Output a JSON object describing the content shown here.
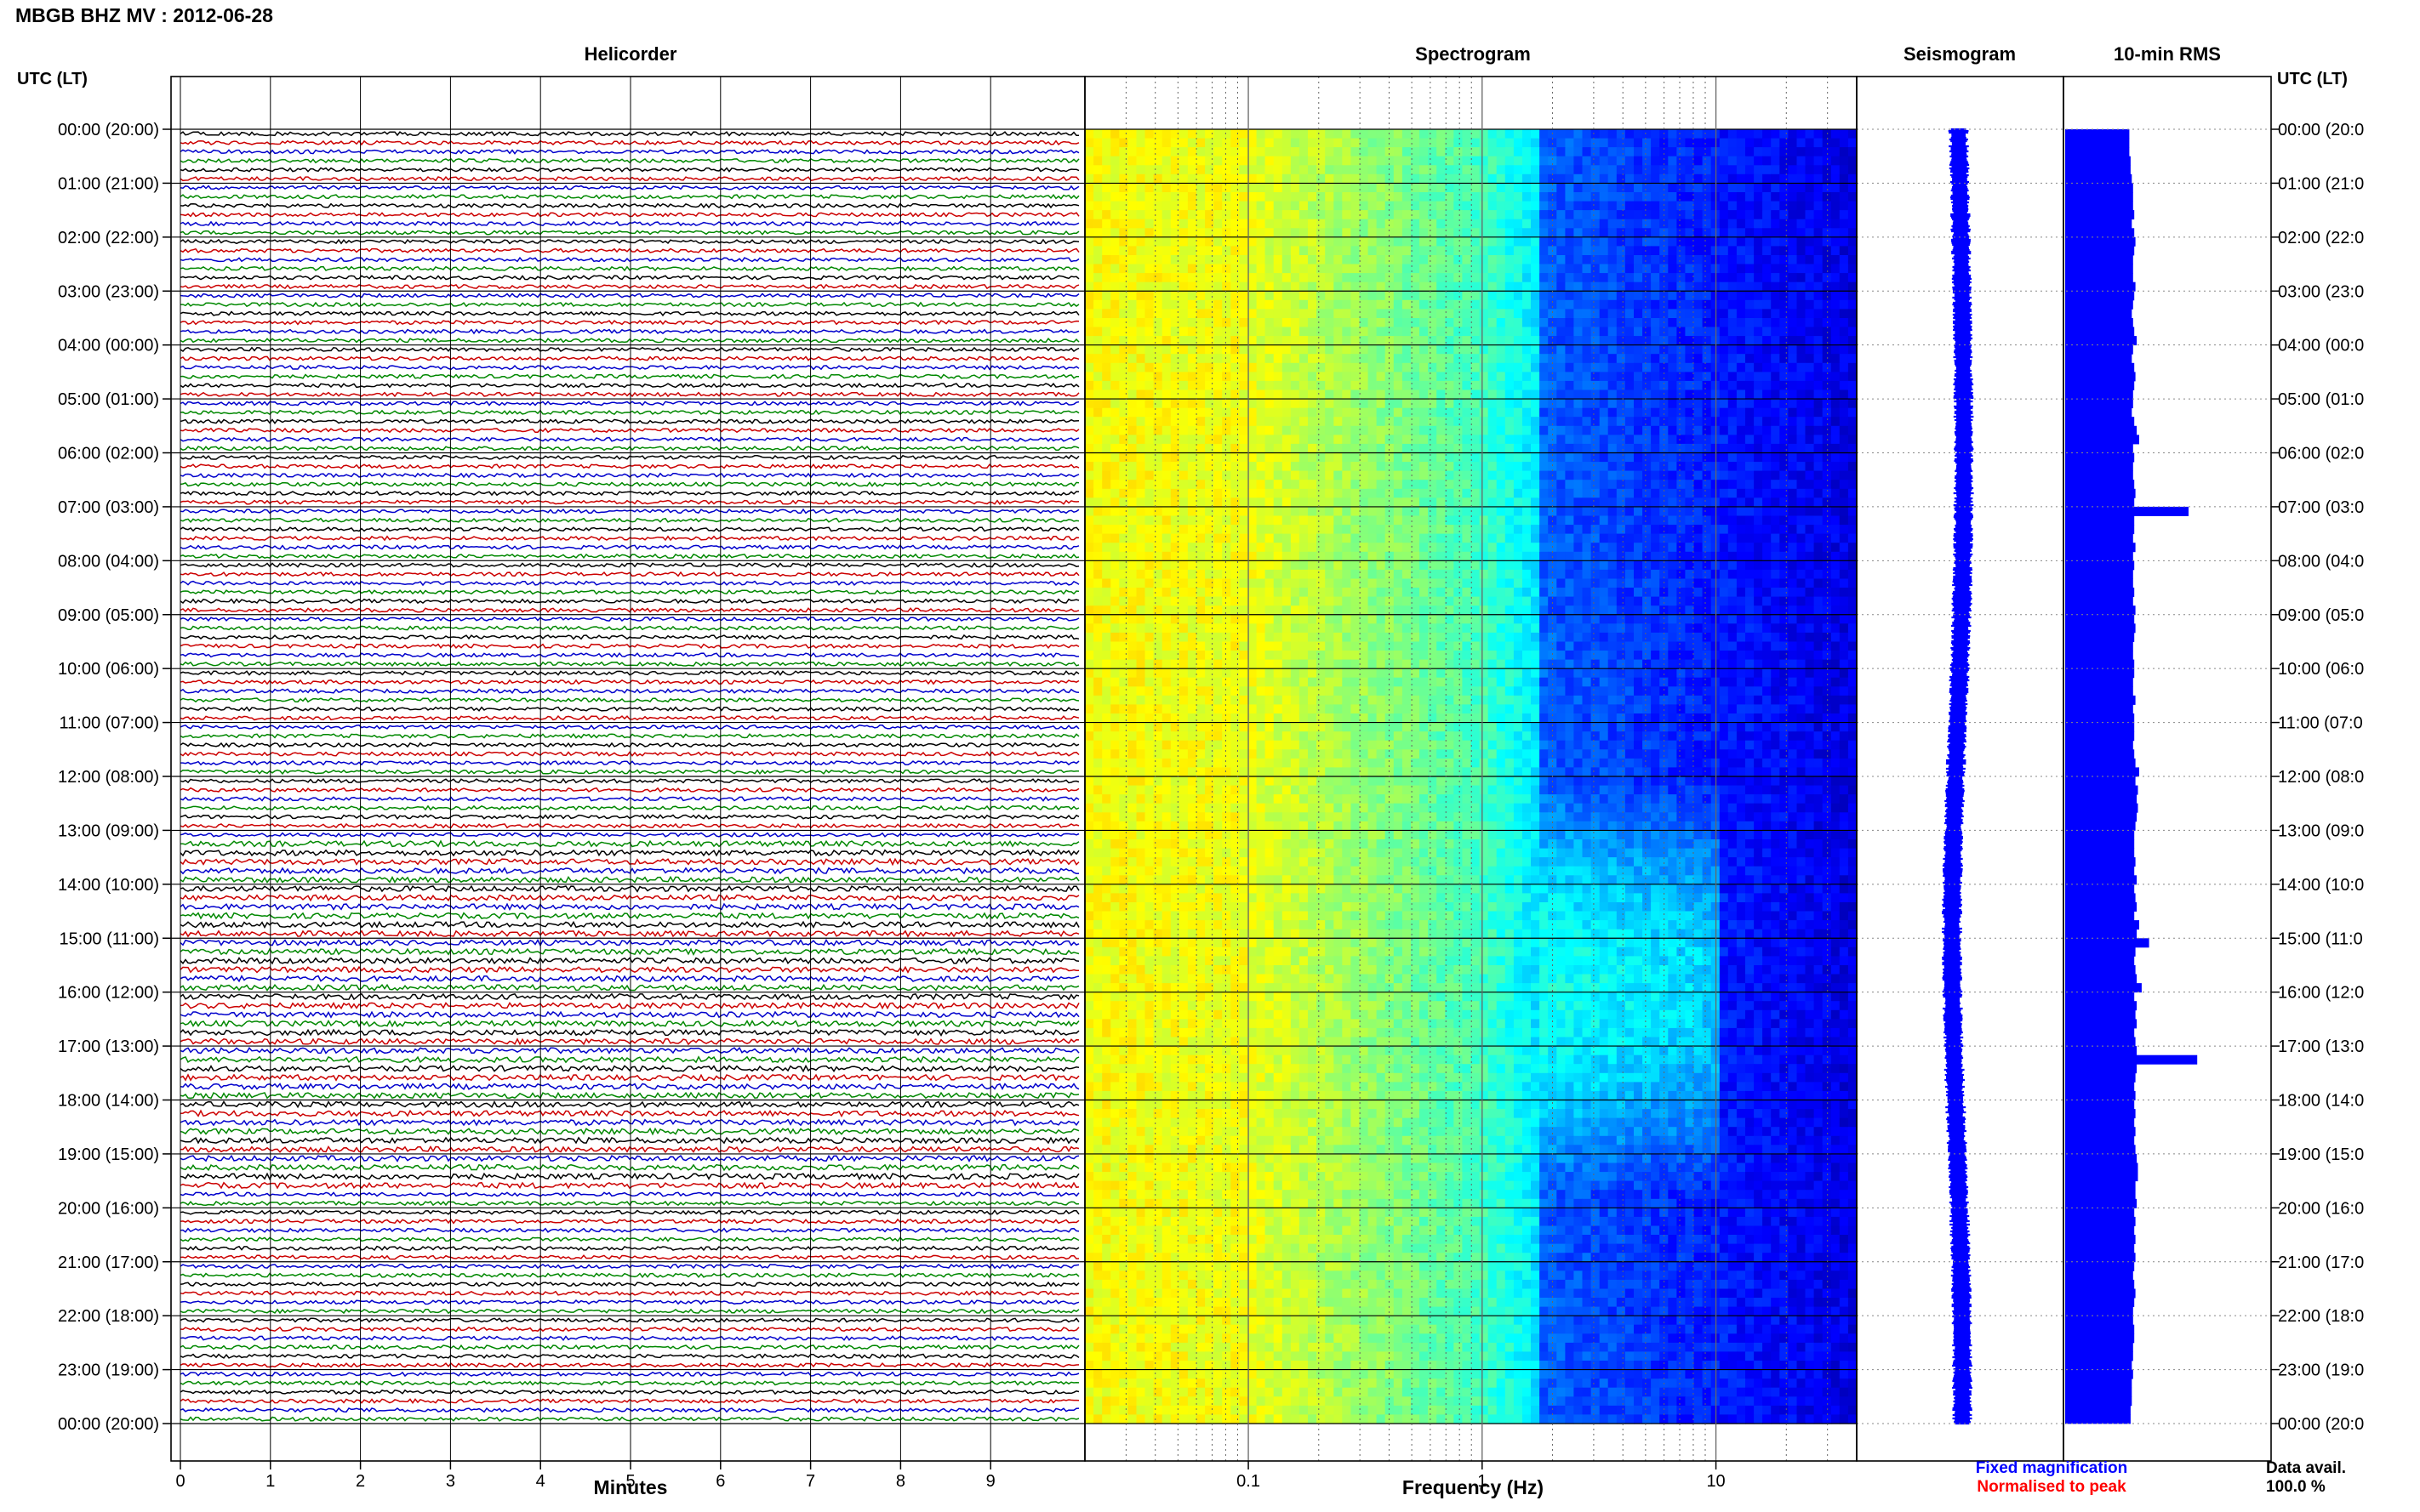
{
  "title": "MBGB BHZ MV : 2012-06-28",
  "panels": {
    "helicorder": "Helicorder",
    "spectrogram": "Spectrogram",
    "seismogram": "Seismogram",
    "rms": "10-min RMS"
  },
  "axis_labels": {
    "utc_left": "UTC (LT)",
    "utc_right": "UTC (LT)",
    "minutes": "Minutes",
    "frequency": "Frequency (Hz)"
  },
  "time_labels": [
    "00:00 (20:00)",
    "01:00 (21:00)",
    "02:00 (22:00)",
    "03:00 (23:00)",
    "04:00 (00:00)",
    "05:00 (01:00)",
    "06:00 (02:00)",
    "07:00 (03:00)",
    "08:00 (04:00)",
    "09:00 (05:00)",
    "10:00 (06:00)",
    "11:00 (07:00)",
    "12:00 (08:00)",
    "13:00 (09:00)",
    "14:00 (10:00)",
    "15:00 (11:00)",
    "16:00 (12:00)",
    "17:00 (13:00)",
    "18:00 (14:00)",
    "19:00 (15:00)",
    "20:00 (16:00)",
    "21:00 (17:00)",
    "22:00 (18:00)",
    "23:00 (19:00)",
    "00:00 (20:00)"
  ],
  "time_labels_right": [
    "00:00 (20:0",
    "01:00 (21:0",
    "02:00 (22:0",
    "03:00 (23:0",
    "04:00 (00:0",
    "05:00 (01:0",
    "06:00 (02:0",
    "07:00 (03:0",
    "08:00 (04:0",
    "09:00 (05:0",
    "10:00 (06:0",
    "11:00 (07:0",
    "12:00 (08:0",
    "13:00 (09:0",
    "14:00 (10:0",
    "15:00 (11:0",
    "16:00 (12:0",
    "17:00 (13:0",
    "18:00 (14:0",
    "19:00 (15:0",
    "20:00 (16:0",
    "21:00 (17:0",
    "22:00 (18:0",
    "23:00 (19:0",
    "00:00 (20:0"
  ],
  "minute_ticks": [
    "0",
    "1",
    "2",
    "3",
    "4",
    "5",
    "6",
    "7",
    "8",
    "9"
  ],
  "frequency_ticks": [
    "0.1",
    "1",
    "10"
  ],
  "legend": {
    "fixed": "Fixed magnification",
    "normalised": "Normalised to peak",
    "fixed_color": "#0000ff",
    "normalised_color": "#ff0000"
  },
  "data_avail": {
    "label": "Data avail.",
    "value": "100.0 %"
  },
  "colors": {
    "trace_cycle": [
      "#000000",
      "#cc0000",
      "#0000cc",
      "#008800"
    ],
    "rms_bar": "#0000ff",
    "seismogram": "#0000ff"
  },
  "chart_data": [
    {
      "type": "line",
      "title": "Helicorder",
      "xlabel": "Minutes",
      "xlim": [
        0,
        10
      ],
      "hours": 24,
      "traces_per_hour": 6,
      "trace_minutes": 10
    },
    {
      "type": "heatmap",
      "title": "Spectrogram",
      "xlabel": "Frequency (Hz)",
      "xscale": "log",
      "xlim": [
        0.02,
        40
      ],
      "colormap": "jet"
    },
    {
      "type": "line",
      "title": "Seismogram",
      "normalised": true
    },
    {
      "type": "bar",
      "title": "10-min RMS",
      "orientation": "horizontal",
      "values": [
        0.52,
        0.52,
        0.52,
        0.53,
        0.53,
        0.54,
        0.55,
        0.55,
        0.55,
        0.56,
        0.54,
        0.56,
        0.57,
        0.56,
        0.55,
        0.55,
        0.55,
        0.57,
        0.56,
        0.55,
        0.54,
        0.55,
        0.56,
        0.58,
        0.55,
        0.54,
        0.56,
        0.57,
        0.56,
        0.55,
        0.55,
        0.54,
        0.56,
        0.58,
        0.6,
        0.55,
        0.56,
        0.55,
        0.55,
        0.56,
        0.57,
        0.56,
        1.0,
        0.56,
        0.56,
        0.55,
        0.57,
        0.55,
        0.56,
        0.55,
        0.55,
        0.56,
        0.55,
        0.57,
        0.56,
        0.57,
        0.56,
        0.55,
        0.55,
        0.56,
        0.56,
        0.55,
        0.55,
        0.57,
        0.55,
        0.56,
        0.56,
        0.56,
        0.55,
        0.56,
        0.57,
        0.6,
        0.57,
        0.59,
        0.58,
        0.59,
        0.58,
        0.57,
        0.56,
        0.56,
        0.56,
        0.57,
        0.56,
        0.58,
        0.56,
        0.57,
        0.58,
        0.56,
        0.6,
        0.58,
        0.68,
        0.57,
        0.56,
        0.57,
        0.58,
        0.62,
        0.56,
        0.58,
        0.57,
        0.58,
        0.56,
        0.57,
        0.58,
        1.07,
        0.58,
        0.57,
        0.56,
        0.57,
        0.56,
        0.57,
        0.56,
        0.57,
        0.56,
        0.57,
        0.58,
        0.59,
        0.59,
        0.57,
        0.57,
        0.58,
        0.56,
        0.57,
        0.56,
        0.57,
        0.56,
        0.57,
        0.56,
        0.55,
        0.56,
        0.57,
        0.56,
        0.55,
        0.55,
        0.56,
        0.56,
        0.55,
        0.55,
        0.54,
        0.55,
        0.54,
        0.54,
        0.54,
        0.53,
        0.53
      ]
    }
  ]
}
